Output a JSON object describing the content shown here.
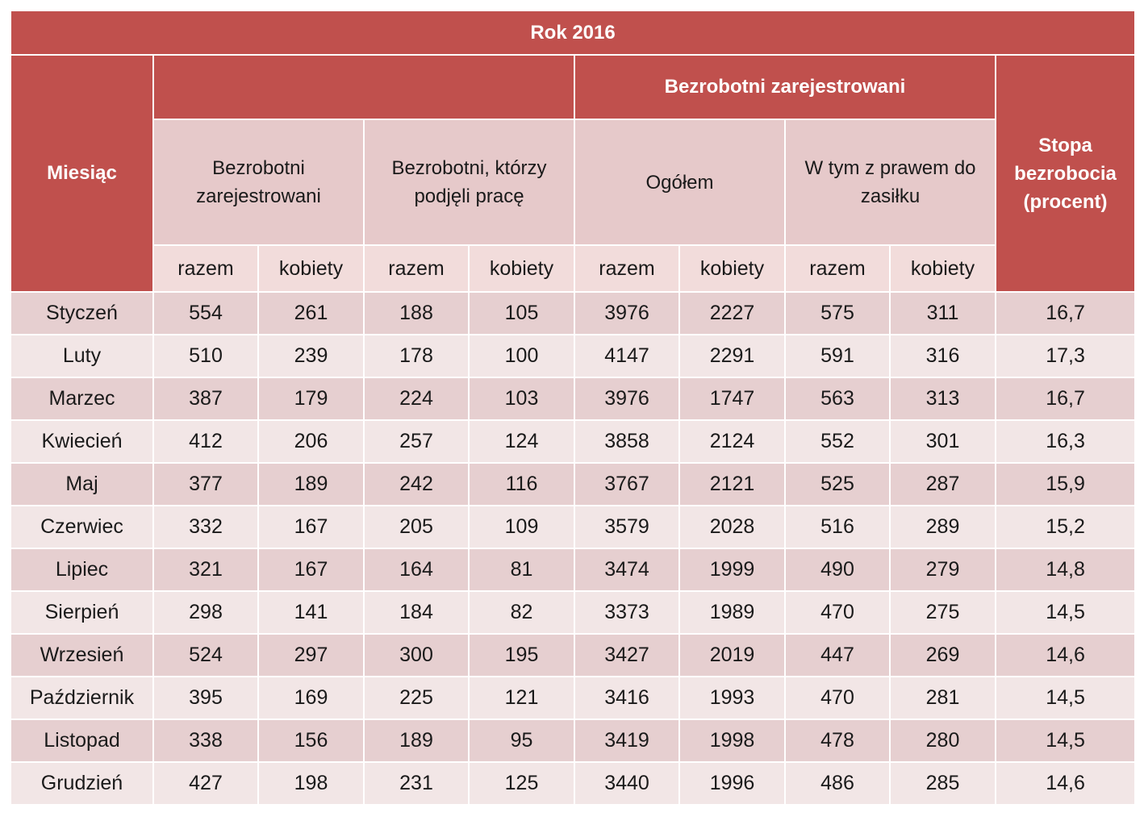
{
  "title": "Rok 2016",
  "headers": {
    "month": "Miesiąc",
    "group": "Bezrobotni zarejestrowani",
    "rate": "Stopa bezrobocia (procent)",
    "col1": "Bezrobotni zarejestrowani",
    "col2": "Bezrobotni, którzy podjęli pracę",
    "col3": "Ogółem",
    "col4": "W tym z prawem do zasiłku",
    "razem": "razem",
    "kobiety": "kobiety"
  },
  "rows": [
    {
      "month": "Styczeń",
      "values": [
        "554",
        "261",
        "188",
        "105",
        "3976",
        "2227",
        "575",
        "311"
      ],
      "rate": "16,7"
    },
    {
      "month": "Luty",
      "values": [
        "510",
        "239",
        "178",
        "100",
        "4147",
        "2291",
        "591",
        "316"
      ],
      "rate": "17,3"
    },
    {
      "month": "Marzec",
      "values": [
        "387",
        "179",
        "224",
        "103",
        "3976",
        "1747",
        "563",
        "313"
      ],
      "rate": "16,7"
    },
    {
      "month": "Kwiecień",
      "values": [
        "412",
        "206",
        "257",
        "124",
        "3858",
        "2124",
        "552",
        "301"
      ],
      "rate": "16,3"
    },
    {
      "month": "Maj",
      "values": [
        "377",
        "189",
        "242",
        "116",
        "3767",
        "2121",
        "525",
        "287"
      ],
      "rate": "15,9"
    },
    {
      "month": "Czerwiec",
      "values": [
        "332",
        "167",
        "205",
        "109",
        "3579",
        "2028",
        "516",
        "289"
      ],
      "rate": "15,2"
    },
    {
      "month": "Lipiec",
      "values": [
        "321",
        "167",
        "164",
        "81",
        "3474",
        "1999",
        "490",
        "279"
      ],
      "rate": "14,8"
    },
    {
      "month": "Sierpień",
      "values": [
        "298",
        "141",
        "184",
        "82",
        "3373",
        "1989",
        "470",
        "275"
      ],
      "rate": "14,5"
    },
    {
      "month": "Wrzesień",
      "values": [
        "524",
        "297",
        "300",
        "195",
        "3427",
        "2019",
        "447",
        "269"
      ],
      "rate": "14,6"
    },
    {
      "month": "Październik",
      "values": [
        "395",
        "169",
        "225",
        "121",
        "3416",
        "1993",
        "470",
        "281"
      ],
      "rate": "14,5"
    },
    {
      "month": "Listopad",
      "values": [
        "338",
        "156",
        "189",
        "95",
        "3419",
        "1998",
        "478",
        "280"
      ],
      "rate": "14,5"
    },
    {
      "month": "Grudzień",
      "values": [
        "427",
        "198",
        "231",
        "125",
        "3440",
        "1996",
        "486",
        "285"
      ],
      "rate": "14,6"
    }
  ]
}
